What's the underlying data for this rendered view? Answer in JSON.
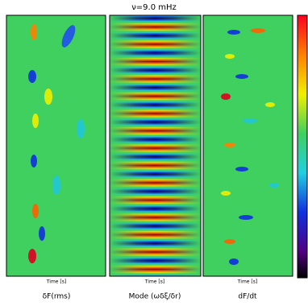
{
  "title": "ν=9.0 mHz",
  "panels": [
    {
      "x_label": "Time [s]",
      "caption": "δF(rms)"
    },
    {
      "x_label": "Time [s]",
      "caption": "Mode (ωδξ/δr)"
    },
    {
      "x_label": "Time [s]",
      "caption": "dF/dt"
    }
  ]
}
